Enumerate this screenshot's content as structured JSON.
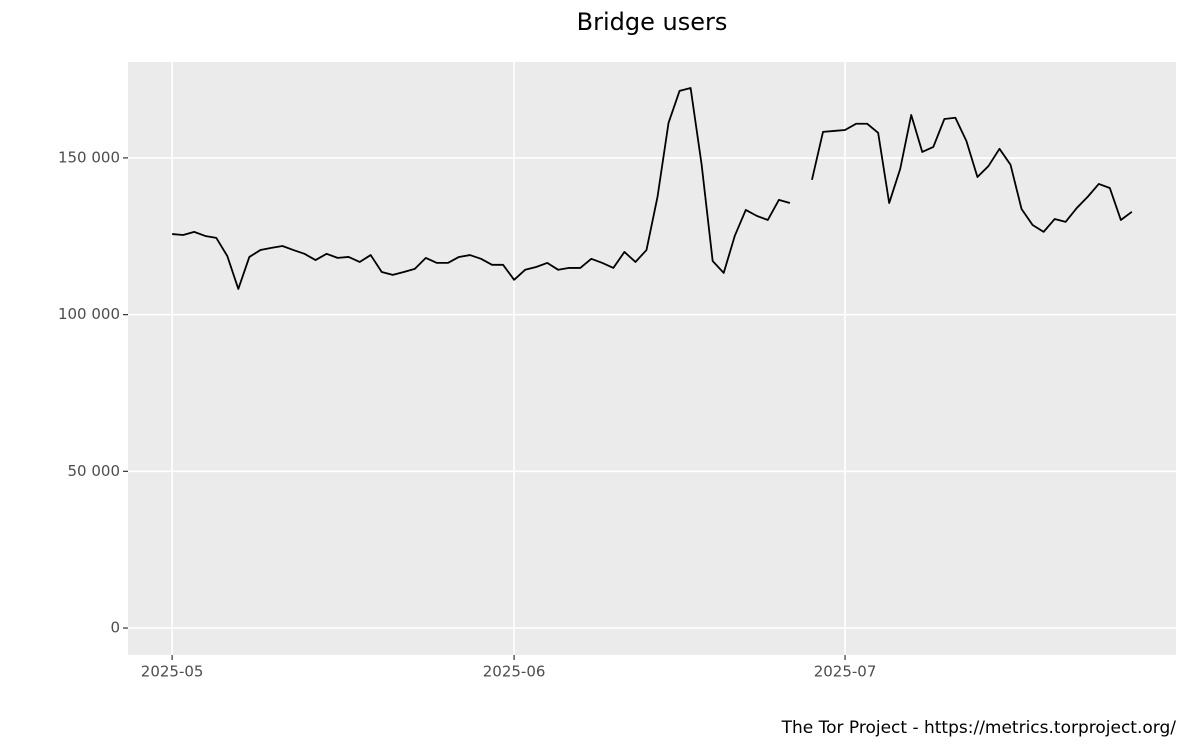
{
  "chart_data": {
    "type": "line",
    "title": "Bridge users",
    "caption": "The Tor Project - https://metrics.torproject.org/",
    "x": [
      "2025-05-01",
      "2025-05-02",
      "2025-05-03",
      "2025-05-04",
      "2025-05-05",
      "2025-05-06",
      "2025-05-07",
      "2025-05-08",
      "2025-05-09",
      "2025-05-10",
      "2025-05-11",
      "2025-05-12",
      "2025-05-13",
      "2025-05-14",
      "2025-05-15",
      "2025-05-16",
      "2025-05-17",
      "2025-05-18",
      "2025-05-19",
      "2025-05-20",
      "2025-05-21",
      "2025-05-22",
      "2025-05-23",
      "2025-05-24",
      "2025-05-25",
      "2025-05-26",
      "2025-05-27",
      "2025-05-28",
      "2025-05-29",
      "2025-05-30",
      "2025-05-31",
      "2025-06-01",
      "2025-06-02",
      "2025-06-03",
      "2025-06-04",
      "2025-06-05",
      "2025-06-06",
      "2025-06-07",
      "2025-06-08",
      "2025-06-09",
      "2025-06-10",
      "2025-06-11",
      "2025-06-12",
      "2025-06-13",
      "2025-06-14",
      "2025-06-15",
      "2025-06-16",
      "2025-06-17",
      "2025-06-18",
      "2025-06-19",
      "2025-06-20",
      "2025-06-21",
      "2025-06-22",
      "2025-06-23",
      "2025-06-24",
      "2025-06-25",
      "2025-06-26",
      "2025-06-27",
      "2025-06-28",
      "2025-06-29",
      "2025-06-30",
      "2025-07-01",
      "2025-07-02",
      "2025-07-03",
      "2025-07-04",
      "2025-07-05",
      "2025-07-06",
      "2025-07-07",
      "2025-07-08",
      "2025-07-09",
      "2025-07-10",
      "2025-07-11",
      "2025-07-12",
      "2025-07-13",
      "2025-07-14",
      "2025-07-15",
      "2025-07-16",
      "2025-07-17",
      "2025-07-18",
      "2025-07-19",
      "2025-07-20",
      "2025-07-21",
      "2025-07-22",
      "2025-07-23",
      "2025-07-24",
      "2025-07-25",
      "2025-07-26",
      "2025-07-27"
    ],
    "values": [
      125700,
      125400,
      126400,
      125100,
      124500,
      118700,
      108200,
      118400,
      120600,
      121300,
      121900,
      120600,
      119400,
      117400,
      119400,
      118100,
      118400,
      116800,
      119000,
      113600,
      112700,
      113600,
      114600,
      118100,
      116500,
      116500,
      118400,
      119000,
      117800,
      115900,
      115900,
      111100,
      114300,
      115200,
      116500,
      114300,
      114900,
      114900,
      117800,
      116500,
      114900,
      120000,
      116800,
      120600,
      137600,
      161200,
      171400,
      172300,
      147800,
      117100,
      113300,
      125100,
      133400,
      131500,
      130200,
      136600,
      135600,
      null,
      143000,
      158300,
      158600,
      158900,
      160900,
      160900,
      158000,
      135600,
      146500,
      163700,
      151900,
      153500,
      162400,
      162800,
      155400,
      143900,
      147400,
      152900,
      147800,
      133700,
      128600,
      126400,
      130500,
      129600,
      134000,
      137600,
      141700,
      140400,
      130200,
      132800
    ],
    "color": "#000000",
    "xlim": [
      "2025-04-27",
      "2025-07-31"
    ],
    "xticks": [
      {
        "value": "2025-05-01",
        "label": "2025-05"
      },
      {
        "value": "2025-06-01",
        "label": "2025-06"
      },
      {
        "value": "2025-07-01",
        "label": "2025-07"
      }
    ],
    "ylim": [
      -8600,
      180600
    ],
    "yticks": [
      0,
      {
        "value": 50000,
        "label": "50 000"
      },
      {
        "value": 100000,
        "label": "100 000"
      },
      {
        "value": 150000,
        "label": "150 000"
      }
    ],
    "grid": true
  }
}
